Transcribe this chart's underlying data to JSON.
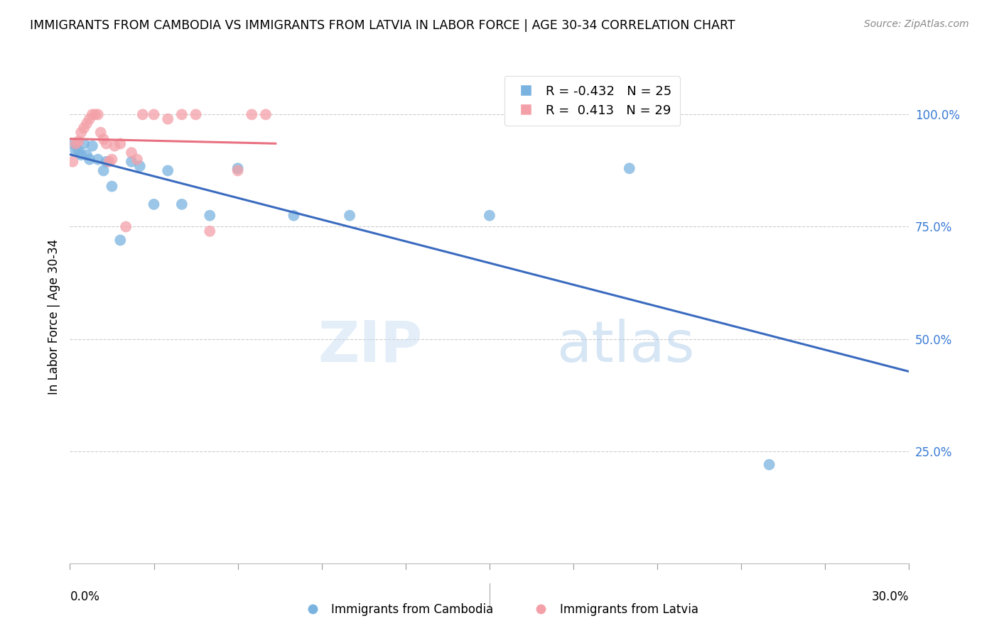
{
  "title": "IMMIGRANTS FROM CAMBODIA VS IMMIGRANTS FROM LATVIA IN LABOR FORCE | AGE 30-34 CORRELATION CHART",
  "source": "Source: ZipAtlas.com",
  "ylabel": "In Labor Force | Age 30-34",
  "xlim": [
    0.0,
    0.3
  ],
  "ylim": [
    0.0,
    1.1
  ],
  "yticks": [
    0.25,
    0.5,
    0.75,
    1.0
  ],
  "ytick_labels": [
    "25.0%",
    "50.0%",
    "75.0%",
    "100.0%"
  ],
  "watermark_zip": "ZIP",
  "watermark_atlas": "atlas",
  "cambodia_color": "#7ab3e0",
  "latvia_color": "#f4a0a8",
  "cambodia_line_color": "#3a6bbf",
  "latvia_line_color": "#e87080",
  "cambodia_x": [
    0.001,
    0.002,
    0.003,
    0.004,
    0.005,
    0.006,
    0.007,
    0.008,
    0.01,
    0.012,
    0.013,
    0.015,
    0.018,
    0.022,
    0.025,
    0.03,
    0.035,
    0.04,
    0.05,
    0.06,
    0.08,
    0.1,
    0.15,
    0.2,
    0.25
  ],
  "cambodia_y": [
    0.935,
    0.92,
    0.92,
    0.91,
    0.935,
    0.91,
    0.9,
    0.93,
    0.9,
    0.875,
    0.895,
    0.84,
    0.72,
    0.895,
    0.885,
    0.8,
    0.875,
    0.8,
    0.775,
    0.88,
    0.775,
    0.775,
    0.775,
    0.88,
    0.22
  ],
  "latvia_x": [
    0.001,
    0.002,
    0.003,
    0.004,
    0.005,
    0.006,
    0.007,
    0.008,
    0.009,
    0.01,
    0.011,
    0.012,
    0.013,
    0.014,
    0.015,
    0.016,
    0.018,
    0.02,
    0.022,
    0.024,
    0.026,
    0.03,
    0.035,
    0.04,
    0.045,
    0.05,
    0.06,
    0.065,
    0.07
  ],
  "latvia_y": [
    0.895,
    0.935,
    0.94,
    0.96,
    0.97,
    0.98,
    0.99,
    1.0,
    1.0,
    1.0,
    0.96,
    0.945,
    0.935,
    0.895,
    0.9,
    0.93,
    0.935,
    0.75,
    0.915,
    0.9,
    1.0,
    1.0,
    0.99,
    1.0,
    1.0,
    0.74,
    0.875,
    1.0,
    1.0
  ],
  "legend_r_cambodia": "R = -0.432",
  "legend_n_cambodia": "N = 25",
  "legend_r_latvia": "R =  0.413",
  "legend_n_latvia": "N = 29",
  "bottom_legend_cambodia": "Immigrants from Cambodia",
  "bottom_legend_latvia": "Immigrants from Latvia"
}
